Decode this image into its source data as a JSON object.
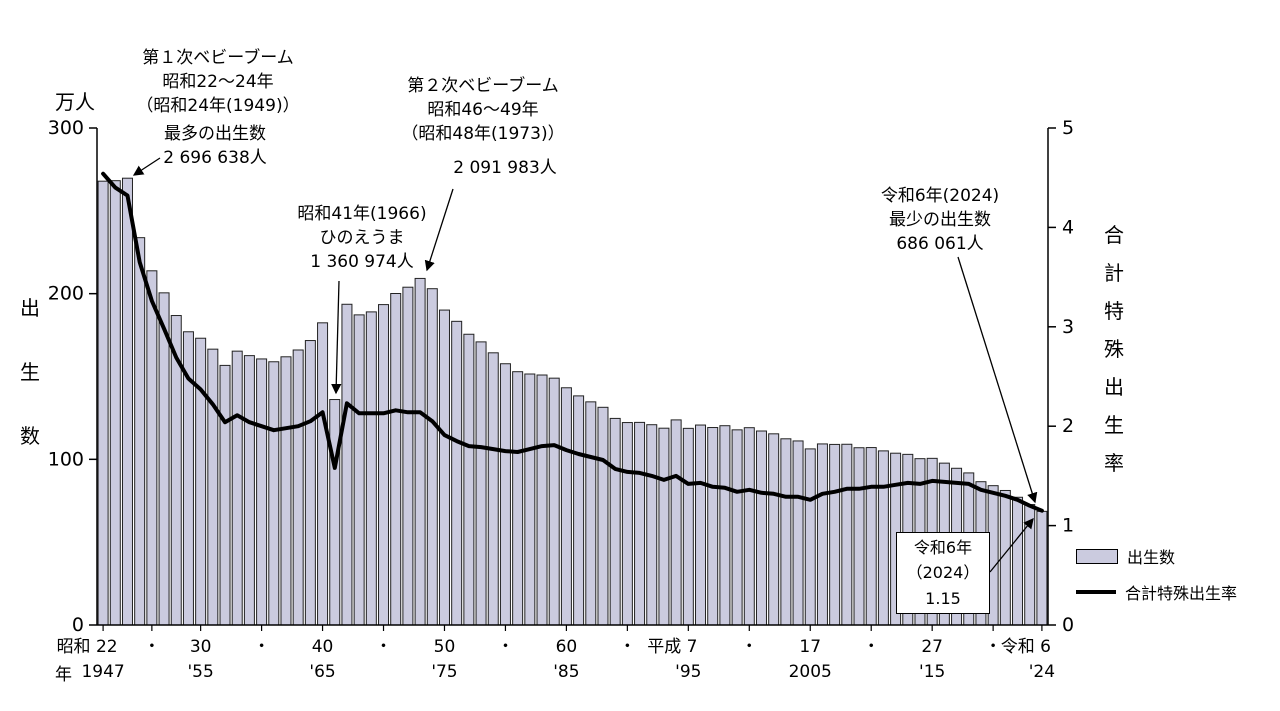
{
  "chart_data": {
    "type": "bar+line",
    "years": [
      1947,
      1948,
      1949,
      1950,
      1951,
      1952,
      1953,
      1954,
      1955,
      1956,
      1957,
      1958,
      1959,
      1960,
      1961,
      1962,
      1963,
      1964,
      1965,
      1966,
      1967,
      1968,
      1969,
      1970,
      1971,
      1972,
      1973,
      1974,
      1975,
      1976,
      1977,
      1978,
      1979,
      1980,
      1981,
      1982,
      1983,
      1984,
      1985,
      1986,
      1987,
      1988,
      1989,
      1990,
      1991,
      1992,
      1993,
      1994,
      1995,
      1996,
      1997,
      1998,
      1999,
      2000,
      2001,
      2002,
      2003,
      2004,
      2005,
      2006,
      2007,
      2008,
      2009,
      2010,
      2011,
      2012,
      2013,
      2014,
      2015,
      2016,
      2017,
      2018,
      2019,
      2020,
      2021,
      2022,
      2023,
      2024
    ],
    "series": [
      {
        "name": "出生数",
        "type": "bar",
        "axis": "left",
        "unit": "万人",
        "values": [
          267.9,
          268.2,
          269.7,
          233.8,
          213.8,
          200.5,
          186.8,
          177.0,
          173.1,
          166.5,
          156.7,
          165.3,
          162.6,
          160.6,
          158.9,
          161.9,
          166.0,
          171.7,
          182.4,
          136.1,
          193.6,
          187.2,
          189.0,
          193.4,
          200.1,
          203.9,
          209.2,
          203.0,
          190.1,
          183.3,
          175.5,
          170.9,
          164.3,
          157.7,
          152.9,
          151.5,
          150.9,
          149.0,
          143.2,
          138.3,
          134.7,
          131.4,
          124.7,
          122.2,
          122.3,
          120.9,
          118.8,
          123.8,
          118.7,
          120.7,
          119.2,
          120.3,
          117.8,
          119.1,
          117.1,
          115.4,
          112.4,
          111.1,
          106.3,
          109.3,
          109.0,
          109.1,
          107.0,
          107.1,
          105.1,
          103.7,
          103.0,
          100.4,
          100.6,
          97.7,
          94.6,
          91.8,
          86.5,
          84.1,
          81.2,
          77.1,
          72.7,
          68.6
        ]
      },
      {
        "name": "合計特殊出生率",
        "type": "line",
        "axis": "right",
        "values": [
          4.54,
          4.4,
          4.32,
          3.65,
          3.26,
          2.98,
          2.69,
          2.48,
          2.37,
          2.22,
          2.04,
          2.11,
          2.04,
          2.0,
          1.96,
          1.98,
          2.0,
          2.05,
          2.14,
          1.58,
          2.23,
          2.13,
          2.13,
          2.13,
          2.16,
          2.14,
          2.14,
          2.05,
          1.91,
          1.85,
          1.8,
          1.79,
          1.77,
          1.75,
          1.74,
          1.77,
          1.8,
          1.81,
          1.76,
          1.72,
          1.69,
          1.66,
          1.57,
          1.54,
          1.53,
          1.5,
          1.46,
          1.5,
          1.42,
          1.43,
          1.39,
          1.38,
          1.34,
          1.36,
          1.33,
          1.32,
          1.29,
          1.29,
          1.26,
          1.32,
          1.34,
          1.37,
          1.37,
          1.39,
          1.39,
          1.41,
          1.43,
          1.42,
          1.45,
          1.44,
          1.43,
          1.42,
          1.36,
          1.33,
          1.3,
          1.26,
          1.2,
          1.15
        ]
      }
    ],
    "left_axis": {
      "unit": "万人",
      "title": "出生数",
      "title_vertical": "出\n生\n数",
      "max": 300,
      "ticks": [
        0,
        100,
        200,
        300
      ]
    },
    "right_axis": {
      "title": "合計特殊出生率",
      "title_vertical": "合\n計\n特\n殊\n出\n生\n率",
      "max": 5,
      "ticks": [
        0,
        1,
        2,
        3,
        4,
        5
      ]
    },
    "x_axis_suffix": "年",
    "x_ticks": [
      {
        "year": 1947,
        "era": "昭和 22",
        "west": "1947"
      },
      {
        "year": 1951,
        "era": "・"
      },
      {
        "year": 1955,
        "era": "30",
        "west": "'55"
      },
      {
        "year": 1960,
        "era": "・"
      },
      {
        "year": 1965,
        "era": "40",
        "west": "'65"
      },
      {
        "year": 1970,
        "era": "・"
      },
      {
        "year": 1975,
        "era": "50",
        "west": "'75"
      },
      {
        "year": 1980,
        "era": "・"
      },
      {
        "year": 1985,
        "era": "60",
        "west": "'85"
      },
      {
        "year": 1990,
        "era": "・"
      },
      {
        "year": 1995,
        "era": "平成 7",
        "west": "'95"
      },
      {
        "year": 2000,
        "era": "・"
      },
      {
        "year": 2005,
        "era": "17",
        "west": "2005"
      },
      {
        "year": 2010,
        "era": "・"
      },
      {
        "year": 2015,
        "era": "27",
        "west": "'15"
      },
      {
        "year": 2020,
        "era": "・"
      },
      {
        "year": 2024,
        "era": "令和 6",
        "west": "'24"
      }
    ],
    "colors": {
      "bar_fill": "#cbcbdf",
      "bar_stroke": "#222222",
      "line": "#000000"
    }
  },
  "annotations": {
    "first_boom": "第１次ベビーブーム\n昭和22～24年\n（昭和24年(1949)）",
    "max_births": "最多の出生数\n2 696 638人",
    "hinoeuma": "昭和41年(1966)\nひのえうま\n1 360 974人",
    "second_boom": "第２次ベビーブーム\n昭和46～49年\n（昭和48年(1973)）",
    "second_boom_births": "2 091 983人",
    "min_births": "令和6年(2024)\n最少の出生数\n686 061人",
    "rate_box": "令和6年\n（2024）\n1.15"
  },
  "legend": {
    "births": "出生数",
    "rate": "合計特殊出生率"
  }
}
